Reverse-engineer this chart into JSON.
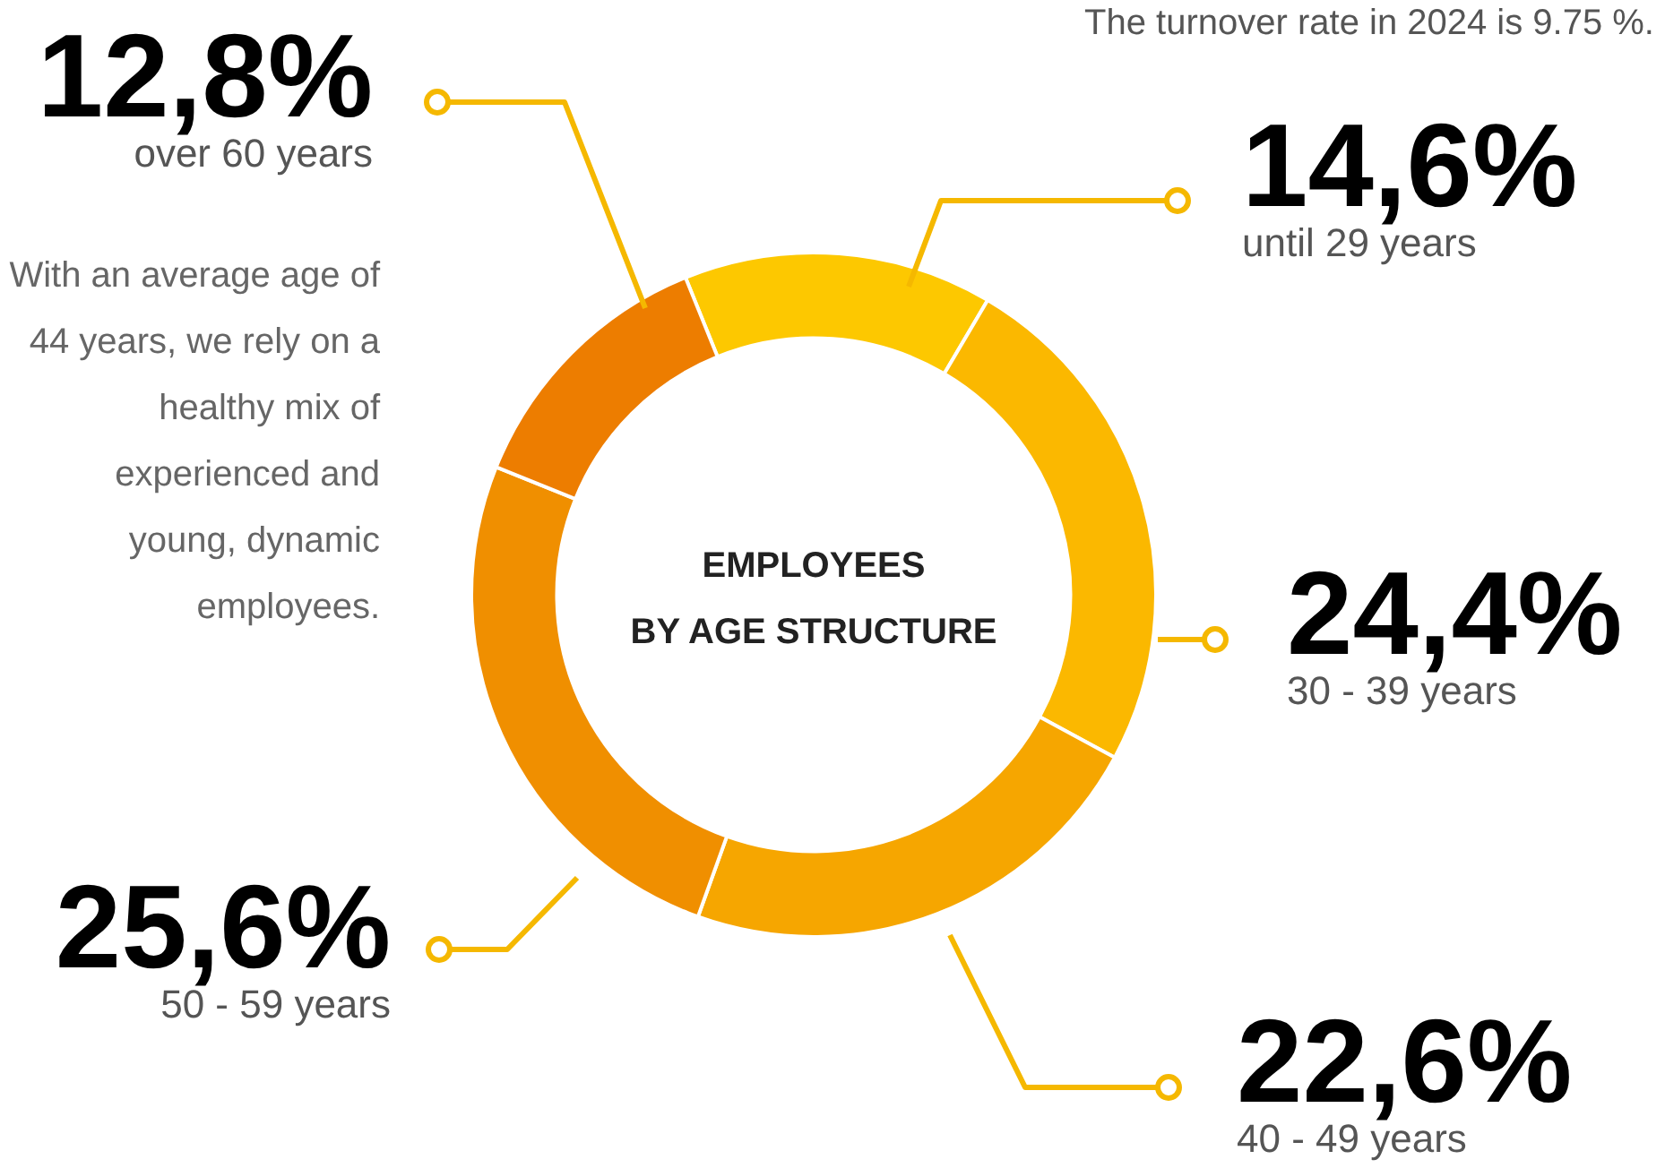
{
  "chart_data": {
    "type": "donut",
    "title": "EMPLOYEES\nBY AGE STRUCTURE",
    "categories": [
      "until 29 years",
      "30 - 39 years",
      "40 - 49 years",
      "50 - 59 years",
      "over 60 years"
    ],
    "values": [
      14.6,
      24.4,
      22.6,
      25.6,
      12.8
    ],
    "value_labels": [
      "14,6%",
      "24,4%",
      "22,6%",
      "25,6%",
      "12,8%"
    ],
    "colors": [
      "#fdc800",
      "#fbb800",
      "#f6a600",
      "#f08f00",
      "#ed7d00"
    ],
    "annotations": [
      "The turnover rate in 2024 is 9.75 %.",
      "With an average age of 44 years, we rely on a healthy mix of experienced and young, dynamic employees."
    ]
  }
}
